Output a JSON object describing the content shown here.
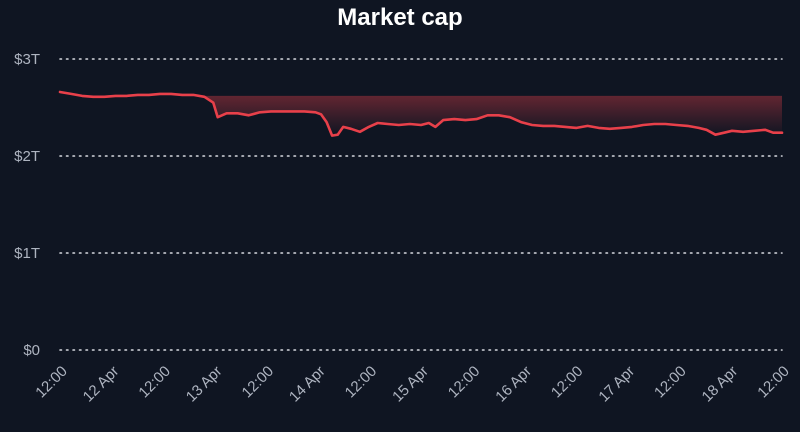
{
  "chart_data": {
    "type": "area",
    "title": "Market cap",
    "xlabel": "",
    "ylabel": "",
    "ylim": [
      0,
      3
    ],
    "y_ticks": [
      {
        "value": 0,
        "label": "$0"
      },
      {
        "value": 1,
        "label": "$1T"
      },
      {
        "value": 2,
        "label": "$2T"
      },
      {
        "value": 3,
        "label": "$3T"
      }
    ],
    "x_range_days": [
      0,
      6.5
    ],
    "x_ticks": [
      "12:00",
      "12 Apr",
      "12:00",
      "13 Apr",
      "12:00",
      "14 Apr",
      "12:00",
      "15 Apr",
      "12:00",
      "16 Apr",
      "12:00",
      "17 Apr",
      "12:00",
      "18 Apr",
      "12:00"
    ],
    "grid": true,
    "line_color": "#e8404a",
    "background_color": "#0f1522",
    "series": [
      {
        "values_unit": "trillion USD",
        "points": [
          [
            0.0,
            2.66
          ],
          [
            0.1,
            2.64
          ],
          [
            0.2,
            2.62
          ],
          [
            0.3,
            2.61
          ],
          [
            0.4,
            2.61
          ],
          [
            0.5,
            2.62
          ],
          [
            0.6,
            2.62
          ],
          [
            0.7,
            2.63
          ],
          [
            0.8,
            2.63
          ],
          [
            0.9,
            2.64
          ],
          [
            1.0,
            2.64
          ],
          [
            1.1,
            2.63
          ],
          [
            1.2,
            2.63
          ],
          [
            1.3,
            2.61
          ],
          [
            1.38,
            2.55
          ],
          [
            1.42,
            2.4
          ],
          [
            1.5,
            2.44
          ],
          [
            1.6,
            2.44
          ],
          [
            1.7,
            2.42
          ],
          [
            1.8,
            2.45
          ],
          [
            1.9,
            2.46
          ],
          [
            2.0,
            2.46
          ],
          [
            2.1,
            2.46
          ],
          [
            2.2,
            2.46
          ],
          [
            2.3,
            2.45
          ],
          [
            2.35,
            2.43
          ],
          [
            2.4,
            2.35
          ],
          [
            2.45,
            2.21
          ],
          [
            2.5,
            2.22
          ],
          [
            2.55,
            2.3
          ],
          [
            2.62,
            2.28
          ],
          [
            2.7,
            2.25
          ],
          [
            2.78,
            2.3
          ],
          [
            2.86,
            2.34
          ],
          [
            2.95,
            2.33
          ],
          [
            3.05,
            2.32
          ],
          [
            3.15,
            2.33
          ],
          [
            3.25,
            2.32
          ],
          [
            3.32,
            2.34
          ],
          [
            3.38,
            2.3
          ],
          [
            3.45,
            2.37
          ],
          [
            3.55,
            2.38
          ],
          [
            3.65,
            2.37
          ],
          [
            3.75,
            2.38
          ],
          [
            3.85,
            2.42
          ],
          [
            3.95,
            2.42
          ],
          [
            4.05,
            2.4
          ],
          [
            4.15,
            2.35
          ],
          [
            4.25,
            2.32
          ],
          [
            4.35,
            2.31
          ],
          [
            4.45,
            2.31
          ],
          [
            4.55,
            2.3
          ],
          [
            4.65,
            2.29
          ],
          [
            4.75,
            2.31
          ],
          [
            4.85,
            2.29
          ],
          [
            4.95,
            2.28
          ],
          [
            5.05,
            2.29
          ],
          [
            5.15,
            2.3
          ],
          [
            5.25,
            2.32
          ],
          [
            5.35,
            2.33
          ],
          [
            5.45,
            2.33
          ],
          [
            5.55,
            2.32
          ],
          [
            5.65,
            2.31
          ],
          [
            5.75,
            2.29
          ],
          [
            5.82,
            2.27
          ],
          [
            5.9,
            2.22
          ],
          [
            5.98,
            2.24
          ],
          [
            6.05,
            2.26
          ],
          [
            6.15,
            2.25
          ],
          [
            6.25,
            2.26
          ],
          [
            6.35,
            2.27
          ],
          [
            6.42,
            2.24
          ],
          [
            6.5,
            2.24
          ]
        ]
      }
    ]
  }
}
